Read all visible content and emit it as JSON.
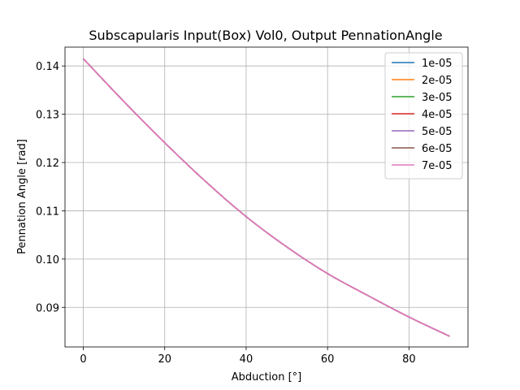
{
  "chart_data": {
    "type": "line",
    "title": "Subscapularis Input(Box) Vol0, Output PennationAngle",
    "xlabel": "Abduction [°]",
    "ylabel": "Pennation Angle [rad]",
    "xlim": [
      -4.5,
      94.5
    ],
    "ylim": [
      0.0818,
      0.1439
    ],
    "xticks": [
      0,
      20,
      40,
      60,
      80
    ],
    "yticks": [
      0.09,
      0.1,
      0.11,
      0.12,
      0.13,
      0.14
    ],
    "ytick_labels": [
      "0.09",
      "0.10",
      "0.11",
      "0.12",
      "0.13",
      "0.14"
    ],
    "grid": true,
    "legend_position": "top-right",
    "x": [
      0,
      10,
      20,
      30,
      40,
      50,
      60,
      70,
      80,
      90
    ],
    "series": [
      {
        "name": "1e-05",
        "color": "#1f77b4",
        "values": [
          0.1415,
          0.1326,
          0.1241,
          0.1161,
          0.1088,
          0.1025,
          0.097,
          0.0924,
          0.088,
          0.084
        ]
      },
      {
        "name": "2e-05",
        "color": "#ff7f0e",
        "values": [
          0.1415,
          0.1326,
          0.1241,
          0.1161,
          0.1088,
          0.1025,
          0.097,
          0.0924,
          0.088,
          0.084
        ]
      },
      {
        "name": "3e-05",
        "color": "#2ca02c",
        "values": [
          0.1415,
          0.1326,
          0.1241,
          0.1161,
          0.1088,
          0.1025,
          0.097,
          0.0924,
          0.088,
          0.084
        ]
      },
      {
        "name": "4e-05",
        "color": "#d62728",
        "values": [
          0.1415,
          0.1326,
          0.1241,
          0.1161,
          0.1088,
          0.1025,
          0.097,
          0.0924,
          0.088,
          0.084
        ]
      },
      {
        "name": "5e-05",
        "color": "#9467bd",
        "values": [
          0.1415,
          0.1326,
          0.1241,
          0.1161,
          0.1088,
          0.1025,
          0.097,
          0.0924,
          0.088,
          0.084
        ]
      },
      {
        "name": "6e-05",
        "color": "#8c564b",
        "values": [
          0.1415,
          0.1326,
          0.1241,
          0.1161,
          0.1088,
          0.1025,
          0.097,
          0.0924,
          0.088,
          0.084
        ]
      },
      {
        "name": "7e-05",
        "color": "#e377c2",
        "values": [
          0.1415,
          0.1326,
          0.1241,
          0.1161,
          0.1088,
          0.1025,
          0.097,
          0.0924,
          0.088,
          0.084
        ]
      }
    ]
  }
}
